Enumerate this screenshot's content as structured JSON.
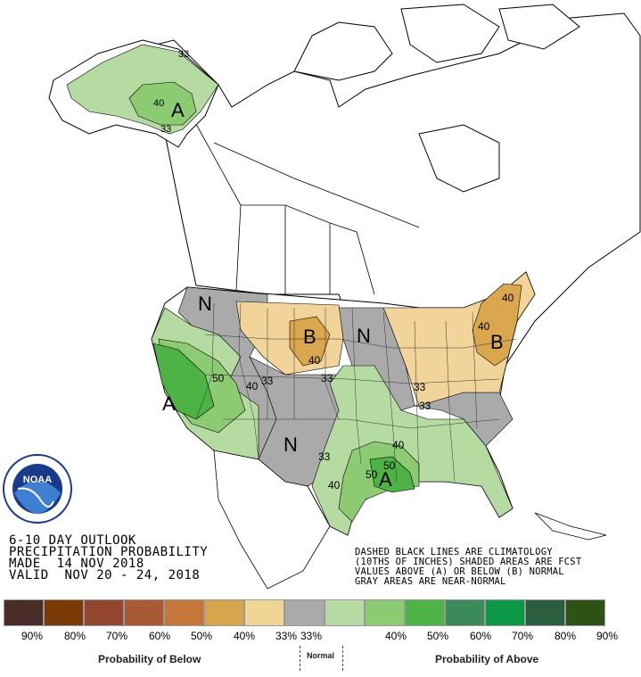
{
  "colors": {
    "above_33_40": "#b5dba3",
    "above_40_50": "#8ccb72",
    "above_50_60": "#4db344",
    "below_33_40": "#f2d49a",
    "below_40_50": "#daa64e",
    "near_normal": "#aaaaaa"
  },
  "map_labels": {
    "alaska_A": "A",
    "alaska_33": "33",
    "alaska_40": "40",
    "alaska_33b": "33",
    "pnw_N": "N",
    "west_A": "A",
    "west_50": "50",
    "west_40": "40",
    "west_33": "33",
    "sw_N": "N",
    "sw_33": "33",
    "tx_40": "40",
    "plains_B": "B",
    "plains_40": "40",
    "plains_33": "33",
    "mw_N": "N",
    "gulf_A": "A",
    "gulf_50": "50",
    "gulf_40": "40",
    "ohio_33": "33",
    "ohio_33b": "33",
    "ne_B": "B",
    "ne_40": "40",
    "ne_40b": "40"
  },
  "title": {
    "line1": "6-10 DAY OUTLOOK",
    "line2": "PRECIPITATION PROBABILITY",
    "line3": "MADE  14 NOV 2018",
    "line4": "VALID  NOV 20 - 24, 2018"
  },
  "notes": {
    "line1": "DASHED BLACK LINES ARE CLIMATOLOGY",
    "line2": "(10THS OF INCHES) SHADED AREAS ARE FCST",
    "line3": "VALUES ABOVE (A) OR BELOW (B) NORMAL",
    "line4": "GRAY AREAS ARE NEAR-NORMAL"
  },
  "logo": {
    "text": "NOAA"
  },
  "legend": {
    "swatch_colors": [
      "#4a2c26",
      "#7a3a06",
      "#93452f",
      "#a85a35",
      "#c5763a",
      "#d6a64e",
      "#efd596",
      "#aaaaaa",
      "#b5dba3",
      "#8ccb72",
      "#4db344",
      "#3a8a5a",
      "#0d9848",
      "#2a5e3e",
      "#2e5216"
    ],
    "below_pcts": [
      "90%",
      "80%",
      "70%",
      "60%",
      "50%",
      "40%",
      "33%"
    ],
    "above_pcts": [
      "33%",
      "40%",
      "50%",
      "60%",
      "70%",
      "80%",
      "90%"
    ],
    "below_label": "Probability of Below",
    "normal_label": "Normal",
    "above_label": "Probability of Above"
  }
}
